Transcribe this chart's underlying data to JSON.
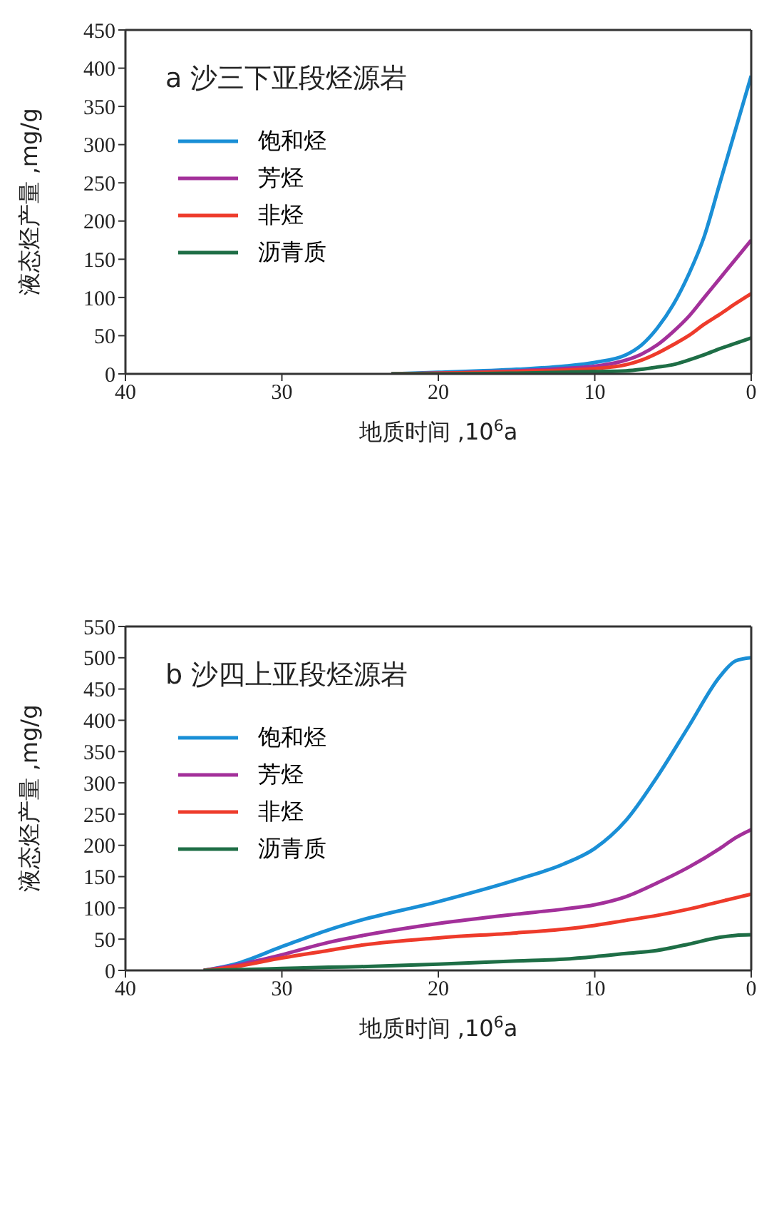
{
  "chart_data": [
    {
      "type": "line",
      "annotations": [
        "a 沙三下亚段烃源岩"
      ],
      "xlabel": "地质时间 ,10$^{6}$a",
      "ylabel": "液态烃产量 ,mg/g",
      "xlim": [
        40,
        0
      ],
      "xticks": [
        40,
        30,
        20,
        10,
        0
      ],
      "ylim": [
        0,
        450
      ],
      "yticks": [
        0,
        50,
        100,
        150,
        200,
        250,
        300,
        350,
        400,
        450
      ],
      "grid": false,
      "legend": "top left",
      "marker": "none",
      "line_style": "solid",
      "series": [
        {
          "name": "饱和烃",
          "color": "#1a8fd6",
          "x": [
            23,
            20,
            15,
            12,
            10,
            8,
            7,
            6,
            5,
            4,
            3,
            2,
            1,
            0
          ],
          "values": [
            0,
            2,
            6,
            10,
            15,
            25,
            38,
            60,
            90,
            130,
            180,
            250,
            320,
            390
          ]
        },
        {
          "name": "芳烃",
          "color": "#a3309a",
          "x": [
            23,
            20,
            15,
            12,
            10,
            8,
            7,
            6,
            5,
            4,
            3,
            2,
            1,
            0
          ],
          "values": [
            0,
            1,
            4,
            7,
            10,
            18,
            26,
            38,
            55,
            75,
            100,
            125,
            150,
            175
          ]
        },
        {
          "name": "非烃",
          "color": "#ee3b2b",
          "x": [
            23,
            20,
            15,
            12,
            10,
            8,
            7,
            6,
            5,
            4,
            3,
            2,
            1,
            0
          ],
          "values": [
            0,
            1,
            3,
            5,
            7,
            12,
            18,
            27,
            38,
            50,
            65,
            78,
            92,
            105
          ]
        },
        {
          "name": "沥青质",
          "color": "#1e6e46",
          "x": [
            23,
            20,
            15,
            12,
            10,
            8,
            7,
            6,
            5,
            4,
            3,
            2,
            1,
            0
          ],
          "values": [
            0,
            0,
            1,
            2,
            3,
            4,
            6,
            9,
            12,
            18,
            25,
            33,
            40,
            47
          ]
        }
      ]
    },
    {
      "type": "line",
      "annotations": [
        "b 沙四上亚段烃源岩"
      ],
      "xlabel": "地质时间 ,10$^{6}$a",
      "ylabel": "液态烃产量 ,mg/g",
      "xlim": [
        40,
        0
      ],
      "xticks": [
        40,
        30,
        20,
        10,
        0
      ],
      "ylim": [
        0,
        550
      ],
      "yticks": [
        0,
        50,
        100,
        150,
        200,
        250,
        300,
        350,
        400,
        450,
        500,
        550
      ],
      "grid": false,
      "legend": "top left",
      "marker": "none",
      "line_style": "solid",
      "series": [
        {
          "name": "饱和烃",
          "color": "#1a8fd6",
          "x": [
            35,
            33,
            30,
            27,
            25,
            20,
            15,
            12,
            10,
            8,
            6,
            4,
            2,
            1,
            0
          ],
          "values": [
            0,
            10,
            38,
            65,
            80,
            110,
            145,
            170,
            195,
            240,
            310,
            390,
            470,
            495,
            500
          ]
        },
        {
          "name": "芳烃",
          "color": "#a3309a",
          "x": [
            35,
            33,
            30,
            27,
            25,
            20,
            15,
            12,
            10,
            8,
            6,
            4,
            2,
            1,
            0
          ],
          "values": [
            0,
            8,
            25,
            45,
            55,
            75,
            90,
            98,
            105,
            118,
            140,
            165,
            195,
            212,
            225
          ]
        },
        {
          "name": "非烃",
          "color": "#ee3b2b",
          "x": [
            35,
            33,
            30,
            27,
            25,
            20,
            15,
            12,
            10,
            8,
            6,
            4,
            2,
            1,
            0
          ],
          "values": [
            0,
            6,
            20,
            32,
            40,
            52,
            60,
            66,
            72,
            80,
            88,
            98,
            110,
            116,
            122
          ]
        },
        {
          "name": "沥青质",
          "color": "#1e6e46",
          "x": [
            35,
            33,
            30,
            27,
            25,
            20,
            15,
            12,
            10,
            8,
            6,
            4,
            2,
            1,
            0
          ],
          "values": [
            0,
            1,
            3,
            5,
            6,
            10,
            15,
            18,
            22,
            27,
            32,
            42,
            53,
            56,
            57
          ]
        }
      ]
    }
  ]
}
